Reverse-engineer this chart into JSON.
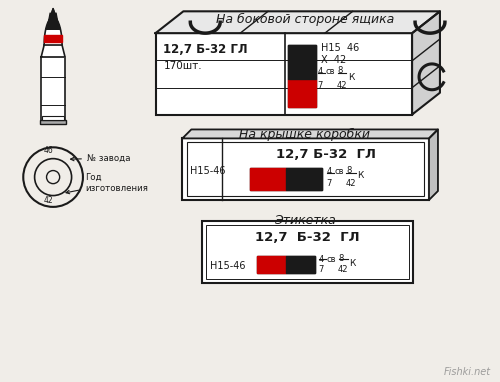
{
  "bg_color": "#f0ede8",
  "line_color": "#1a1a1a",
  "title1": "На боковой стороне ящика",
  "title2": "На крышке коробки",
  "title3": "Этикетка",
  "box1_text1": "12,7 Б-32 ГЛ",
  "box1_text2": "170шт.",
  "box1_right1": "Н15  46",
  "box1_right2": "Х  42",
  "box2_text1": "12,7 Б-32  ГЛ",
  "box2_left": "Н15-46",
  "box3_text1": "12,7  Б-32  ГЛ",
  "box3_left": "Н15-46",
  "red_color": "#cc0000",
  "black_color": "#1a1a1a",
  "watermark": "Fishki.net"
}
